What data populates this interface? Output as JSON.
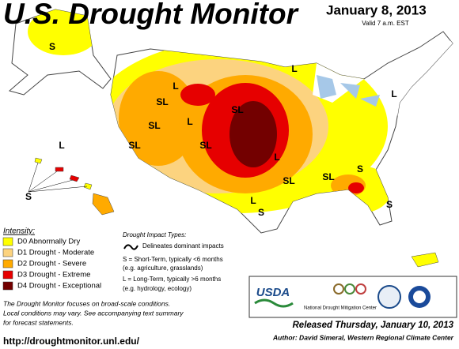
{
  "header": {
    "title": "U.S. Drought Monitor",
    "date": "January 8, 2013",
    "valid": "Valid 7 a.m. EST"
  },
  "legend": {
    "title": "Intensity:",
    "items": [
      {
        "label": "D0 Abnormally Dry",
        "color": "#ffff00"
      },
      {
        "label": "D1 Drought - Moderate",
        "color": "#fcd37f"
      },
      {
        "label": "D2 Drought - Severe",
        "color": "#ffaa00"
      },
      {
        "label": "D3 Drought - Extreme",
        "color": "#e60000"
      },
      {
        "label": "D4 Drought - Exceptional",
        "color": "#730000"
      }
    ]
  },
  "impacts": {
    "title": "Drought Impact Types:",
    "line": "Delineates dominant impacts",
    "short": "S = Short-Term, typically <6 months",
    "short_eg": "(e.g. agriculture, grasslands)",
    "long": "L = Long-Term, typically >6 months",
    "long_eg": "(e.g. hydrology, ecology)"
  },
  "note": [
    "The Drought Monitor focuses on broad-scale conditions.",
    "Local conditions may vary. See accompanying text summary",
    "for forecast statements."
  ],
  "url": "http://droughtmonitor.unl.edu/",
  "release": "Released Thursday, January 10, 2013",
  "author": "Author: David Simeral, Western Regional Climate Center",
  "logos": {
    "usda": "USDA",
    "ndmc": "National Drought Mitigation Center"
  },
  "map_labels": [
    "S",
    "L",
    "S",
    "SL",
    "L",
    "SL",
    "SL",
    "L",
    "SL",
    "SL",
    "L",
    "S",
    "SL",
    "S",
    "L",
    "SL",
    "L",
    "L",
    "S"
  ]
}
